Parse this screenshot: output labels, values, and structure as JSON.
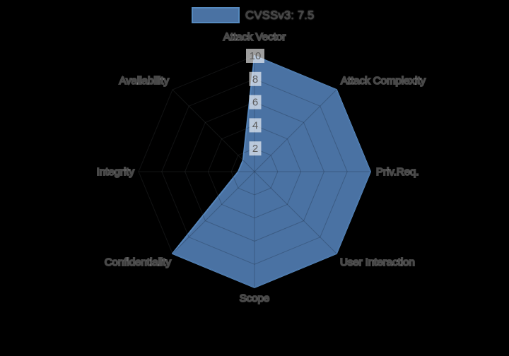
{
  "legend": {
    "label": "CVSSv3: 7.5"
  },
  "colors": {
    "background": "#000000",
    "fill": "#4a72a3",
    "stroke": "#5585bb",
    "grid_inside": "rgba(25,40,60,0.30)",
    "grid_outside": "rgba(180,190,200,0.10)",
    "tick_chip": "rgba(255,255,255,0.62)",
    "tick_text": "#5c5c5c",
    "label_text": "#4a4a4a"
  },
  "chart_data": {
    "type": "radar",
    "title": "",
    "categories": [
      "Attack Vector",
      "Attack Complexity",
      "Priv.Req.",
      "User Interaction",
      "Scope",
      "Confidentiality",
      "Integrity",
      "Availability"
    ],
    "series": [
      {
        "name": "CVSSv3: 7.5",
        "values": [
          10,
          10,
          10,
          10,
          10,
          10,
          1.4,
          1.4
        ]
      }
    ],
    "radial_ticks": [
      2,
      4,
      6,
      8,
      10
    ],
    "radial_range": [
      0,
      10
    ],
    "start_axis": "top",
    "direction": "clockwise",
    "grid": true,
    "legend_position": "top-center"
  }
}
